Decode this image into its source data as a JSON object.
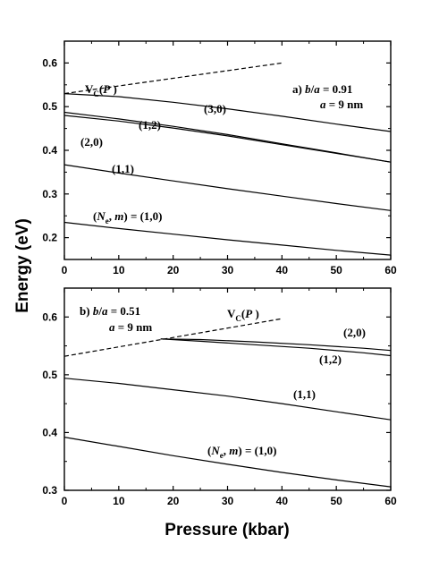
{
  "chart_data": [
    {
      "type": "line",
      "panel": "top",
      "xlabel": "",
      "ylabel": "",
      "xlim": [
        0,
        60
      ],
      "ylim": [
        0.15,
        0.65
      ],
      "xticks": [
        0,
        10,
        20,
        30,
        40,
        50,
        60
      ],
      "yticks": [
        "0.2",
        "0.3",
        "0.4",
        "0.5",
        "0.6"
      ],
      "labels": {
        "panel": "a) b/a = 0.91",
        "size": "a = 9 nm",
        "vc": "VC(P)"
      },
      "series": [
        {
          "label": "(3,0)",
          "x": [
            0,
            10,
            20,
            30,
            40,
            50,
            60
          ],
          "y": [
            0.53,
            0.523,
            0.51,
            0.495,
            0.478,
            0.46,
            0.443
          ]
        },
        {
          "label": "(1,2)",
          "x": [
            0,
            10,
            20,
            30,
            40,
            50,
            60
          ],
          "y": [
            0.487,
            0.472,
            0.455,
            0.436,
            0.415,
            0.394,
            0.373
          ]
        },
        {
          "label": "(2,0)",
          "x": [
            0,
            10,
            20,
            30,
            40,
            50,
            60
          ],
          "y": [
            0.48,
            0.467,
            0.451,
            0.433,
            0.413,
            0.393,
            0.373
          ]
        },
        {
          "label": "(1,1)",
          "x": [
            0,
            10,
            20,
            30,
            40,
            50,
            60
          ],
          "y": [
            0.367,
            0.348,
            0.33,
            0.312,
            0.295,
            0.278,
            0.262
          ]
        },
        {
          "label": "(Ne, m) = (1,0)",
          "x": [
            0,
            10,
            20,
            30,
            40,
            50,
            60
          ],
          "y": [
            0.235,
            0.221,
            0.208,
            0.195,
            0.183,
            0.171,
            0.16
          ]
        },
        {
          "label": "VC(P)",
          "style": "dashed",
          "x": [
            0,
            40
          ],
          "y": [
            0.53,
            0.6
          ]
        }
      ]
    },
    {
      "type": "line",
      "panel": "bottom",
      "xlabel": "Pressure (kbar)",
      "ylabel": "Energy (eV)",
      "xlim": [
        0,
        60
      ],
      "ylim": [
        0.3,
        0.65
      ],
      "xticks": [
        0,
        10,
        20,
        30,
        40,
        50,
        60
      ],
      "yticks": [
        "0.3",
        "0.4",
        "0.5",
        "0.6"
      ],
      "labels": {
        "panel": "b) b/a = 0.51",
        "size": "a = 9 nm",
        "vc": "VC(P)"
      },
      "series": [
        {
          "label": "(2,0)",
          "x": [
            17.7,
            25,
            35,
            45,
            55,
            60
          ],
          "y": [
            0.562,
            0.561,
            0.557,
            0.552,
            0.546,
            0.542
          ]
        },
        {
          "label": "(1,2)",
          "x": [
            17.7,
            25,
            35,
            45,
            55,
            60
          ],
          "y": [
            0.562,
            0.558,
            0.552,
            0.546,
            0.538,
            0.533
          ]
        },
        {
          "label": "(1,1)",
          "x": [
            0,
            10,
            20,
            30,
            40,
            50,
            60
          ],
          "y": [
            0.494,
            0.485,
            0.474,
            0.463,
            0.45,
            0.436,
            0.422
          ]
        },
        {
          "label": "(Ne, m) = (1,0)",
          "x": [
            0,
            10,
            20,
            30,
            40,
            50,
            60
          ],
          "y": [
            0.392,
            0.376,
            0.36,
            0.345,
            0.331,
            0.318,
            0.306
          ]
        },
        {
          "label": "VC(P)",
          "style": "dashed",
          "x": [
            0,
            40
          ],
          "y": [
            0.532,
            0.597
          ]
        }
      ]
    }
  ]
}
